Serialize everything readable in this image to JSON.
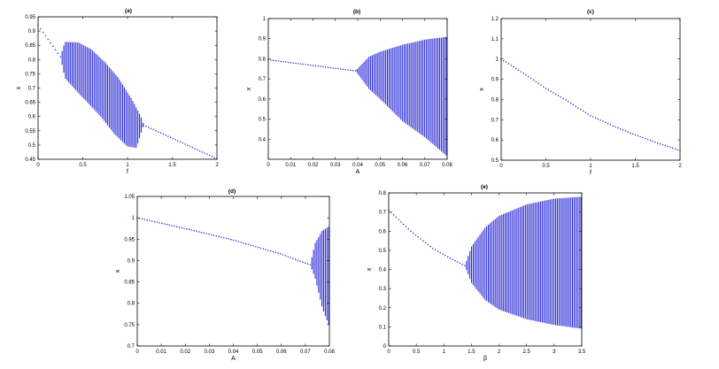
{
  "chart_data": [
    {
      "type": "scatter",
      "title": "(a)",
      "xlabel": "f",
      "ylabel": "x",
      "xlim": [
        0,
        2
      ],
      "ylim": [
        0.45,
        0.95
      ],
      "xticks": [
        "0",
        "0.5",
        "1",
        "1.5",
        "2"
      ],
      "yticks": [
        "0.45",
        "0.5",
        "0.55",
        "0.6",
        "0.65",
        "0.7",
        "0.75",
        "0.8",
        "0.85",
        "0.9",
        "0.95"
      ],
      "series_color": "#2b2bd6",
      "fixed_point_left": {
        "x": [
          0,
          0.25
        ],
        "y": [
          0.92,
          0.81
        ]
      },
      "oscillation_band": {
        "x_range": [
          0.25,
          1.18
        ],
        "upper": [
          [
            0.25,
            0.81
          ],
          [
            0.3,
            0.862
          ],
          [
            0.45,
            0.86
          ],
          [
            0.6,
            0.835
          ],
          [
            0.75,
            0.79
          ],
          [
            0.9,
            0.735
          ],
          [
            1.05,
            0.66
          ],
          [
            1.15,
            0.6
          ],
          [
            1.18,
            0.57
          ]
        ],
        "lower": [
          [
            0.25,
            0.81
          ],
          [
            0.3,
            0.735
          ],
          [
            0.4,
            0.7
          ],
          [
            0.55,
            0.65
          ],
          [
            0.7,
            0.6
          ],
          [
            0.85,
            0.54
          ],
          [
            1.0,
            0.495
          ],
          [
            1.1,
            0.49
          ],
          [
            1.18,
            0.57
          ]
        ]
      },
      "fixed_point_right": {
        "x": [
          1.18,
          2
        ],
        "y": [
          0.57,
          0.452
        ]
      }
    },
    {
      "type": "scatter",
      "title": "(b)",
      "xlabel": "A",
      "ylabel": "x",
      "xlim": [
        0,
        0.08
      ],
      "ylim": [
        0.3,
        1
      ],
      "xticks": [
        "0",
        "0.01",
        "0.02",
        "0.03",
        "0.04",
        "0.05",
        "0.06",
        "0.07",
        "0.08"
      ],
      "yticks": [
        "0.4",
        "0.5",
        "0.6",
        "0.7",
        "0.8",
        "0.9",
        "1"
      ],
      "series_color": "#2b2bd6",
      "fixed_point": {
        "x": [
          0,
          0.039
        ],
        "y": [
          0.795,
          0.74
        ]
      },
      "oscillation_band": {
        "x_range": [
          0.039,
          0.08
        ],
        "upper": [
          [
            0.039,
            0.74
          ],
          [
            0.045,
            0.81
          ],
          [
            0.05,
            0.835
          ],
          [
            0.06,
            0.87
          ],
          [
            0.07,
            0.895
          ],
          [
            0.08,
            0.91
          ]
        ],
        "lower": [
          [
            0.039,
            0.74
          ],
          [
            0.045,
            0.65
          ],
          [
            0.05,
            0.6
          ],
          [
            0.06,
            0.49
          ],
          [
            0.07,
            0.41
          ],
          [
            0.08,
            0.315
          ]
        ]
      }
    },
    {
      "type": "scatter",
      "title": "(c)",
      "xlabel": "f",
      "ylabel": "x",
      "xlim": [
        0,
        2
      ],
      "ylim": [
        0.5,
        1.2
      ],
      "xticks": [
        "0",
        "0.5",
        "1",
        "1.5",
        "2"
      ],
      "yticks": [
        "0.5",
        "0.6",
        "0.7",
        "0.8",
        "0.9",
        "1",
        "1.1",
        "1.2"
      ],
      "series_color": "#2b2bd6",
      "fixed_point": {
        "x": [
          0,
          0.25,
          0.5,
          0.75,
          1.0,
          1.25,
          1.5,
          1.75,
          2.0
        ],
        "y": [
          1.0,
          0.93,
          0.855,
          0.79,
          0.72,
          0.67,
          0.625,
          0.585,
          0.548
        ]
      }
    },
    {
      "type": "scatter",
      "title": "(d)",
      "xlabel": "A",
      "ylabel": "x",
      "xlim": [
        0,
        0.08
      ],
      "ylim": [
        0.7,
        1.05
      ],
      "xticks": [
        "0",
        "0.01",
        "0.02",
        "0.03",
        "0.04",
        "0.05",
        "0.06",
        "0.07",
        "0.08"
      ],
      "yticks": [
        "0.7",
        "0.75",
        "0.8",
        "0.85",
        "0.9",
        "0.95",
        "1",
        "1.05"
      ],
      "series_color": "#2b2bd6",
      "fixed_point": {
        "x": [
          0,
          0.02,
          0.04,
          0.06,
          0.072
        ],
        "y": [
          1.0,
          0.975,
          0.948,
          0.915,
          0.89
        ]
      },
      "oscillation_band": {
        "x_range": [
          0.072,
          0.08
        ],
        "upper": [
          [
            0.072,
            0.89
          ],
          [
            0.074,
            0.94
          ],
          [
            0.077,
            0.97
          ],
          [
            0.08,
            0.98
          ]
        ],
        "lower": [
          [
            0.072,
            0.89
          ],
          [
            0.074,
            0.86
          ],
          [
            0.077,
            0.79
          ],
          [
            0.08,
            0.745
          ]
        ]
      }
    },
    {
      "type": "scatter",
      "title": "(e)",
      "xlabel": "β",
      "ylabel": "x",
      "xlim": [
        0,
        3.5
      ],
      "ylim": [
        0,
        0.8
      ],
      "xticks": [
        "0",
        "0.5",
        "1",
        "1.5",
        "2",
        "2.5",
        "3",
        "3.5"
      ],
      "yticks": [
        "0",
        "0.1",
        "0.2",
        "0.3",
        "0.4",
        "0.5",
        "0.6",
        "0.7",
        "0.8"
      ],
      "series_color": "#2b2bd6",
      "fixed_point": {
        "x": [
          0,
          0.4,
          0.8,
          1.1,
          1.38
        ],
        "y": [
          0.71,
          0.6,
          0.51,
          0.46,
          0.42
        ]
      },
      "oscillation_band": {
        "x_range": [
          1.38,
          3.5
        ],
        "upper": [
          [
            1.38,
            0.42
          ],
          [
            1.5,
            0.52
          ],
          [
            1.75,
            0.62
          ],
          [
            2.0,
            0.68
          ],
          [
            2.5,
            0.74
          ],
          [
            3.0,
            0.77
          ],
          [
            3.5,
            0.78
          ]
        ],
        "lower": [
          [
            1.38,
            0.42
          ],
          [
            1.5,
            0.33
          ],
          [
            1.75,
            0.24
          ],
          [
            2.0,
            0.19
          ],
          [
            2.5,
            0.14
          ],
          [
            3.0,
            0.11
          ],
          [
            3.5,
            0.09
          ]
        ]
      }
    }
  ]
}
